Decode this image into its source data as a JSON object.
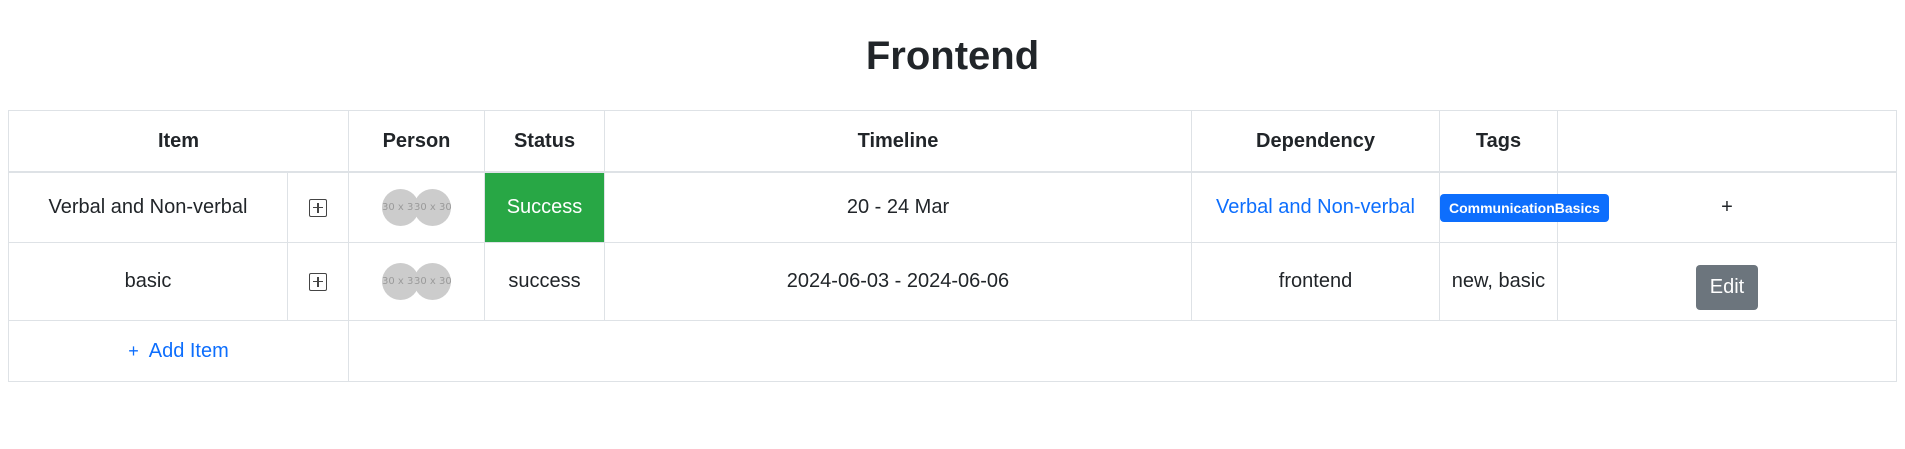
{
  "page": {
    "title": "Frontend"
  },
  "columns": {
    "item": "Item",
    "person": "Person",
    "status": "Status",
    "timeline": "Timeline",
    "dependency": "Dependency",
    "tags": "Tags"
  },
  "rows": [
    {
      "item": "Verbal and Non-verbal",
      "avatars": [
        "30 x 30",
        "30 x 30"
      ],
      "status": "Success",
      "timeline": "20 - 24 Mar",
      "dependency": "Verbal and Non-verbal",
      "tags": "CommunicationBasics",
      "action": "+"
    },
    {
      "item": "basic",
      "avatars": [
        "30 x 30",
        "30 x 30"
      ],
      "status": "success",
      "timeline": "2024-06-03 - 2024-06-06",
      "dependency": "frontend",
      "tags": "new, basic",
      "action": "Edit"
    }
  ],
  "add_item": {
    "icon": "+",
    "label": "Add Item"
  },
  "colors": {
    "status_success": "#28a745",
    "link": "#0d6efd",
    "tag_badge": "#0d6efd",
    "edit_button": "#6c757d"
  }
}
